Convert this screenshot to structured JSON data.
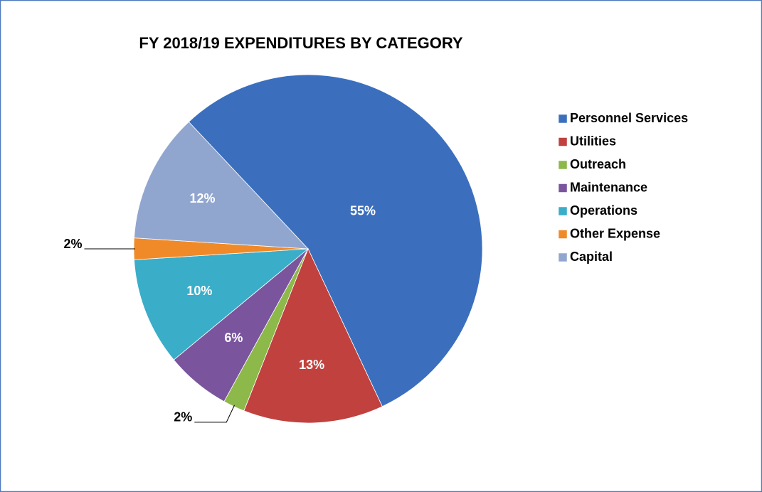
{
  "chart_data": {
    "type": "pie",
    "title": "FY 2018/19 EXPENDITURES BY CATEGORY",
    "categories": [
      "Personnel Services",
      "Utilities",
      "Outreach",
      "Maintenance",
      "Operations",
      "Other Expense",
      "Capital"
    ],
    "values": [
      55,
      13,
      2,
      6,
      10,
      2,
      12
    ],
    "value_labels": [
      "55%",
      "13%",
      "2%",
      "6%",
      "10%",
      "2%",
      "12%"
    ],
    "colors": [
      "#3b6fbd",
      "#c0413e",
      "#8db84a",
      "#7a559e",
      "#3aadc8",
      "#f08a28",
      "#91a6cf"
    ],
    "legend": "right"
  }
}
